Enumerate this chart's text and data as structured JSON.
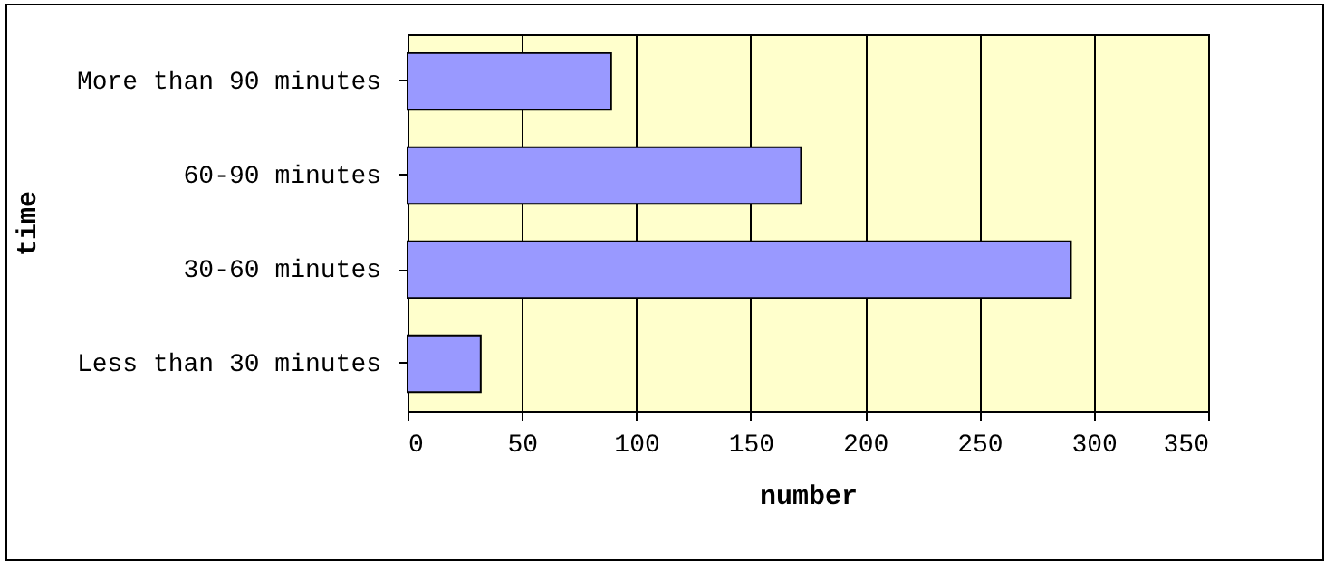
{
  "chart_data": {
    "type": "bar",
    "orientation": "horizontal",
    "xlabel": "number",
    "ylabel": "time",
    "categories": [
      "More than 90 minutes",
      "60-90 minutes",
      "30-60 minutes",
      "Less than 30 minutes"
    ],
    "values": [
      89,
      172,
      290,
      32
    ],
    "color": "#9999ff",
    "xlim": [
      0,
      350
    ],
    "xticks": [
      0,
      50,
      100,
      150,
      200,
      250,
      300,
      350
    ],
    "grid": "x"
  }
}
